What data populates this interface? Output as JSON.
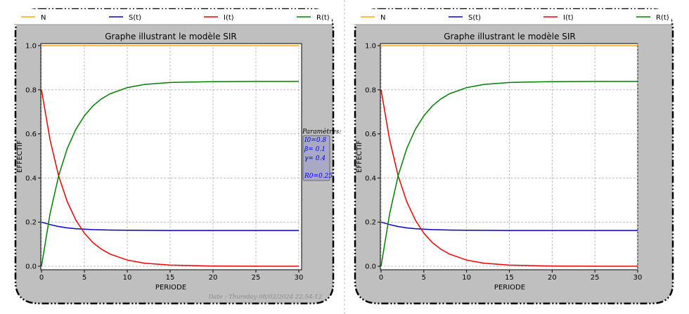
{
  "legend": [
    {
      "label": "N",
      "color": "#ffa500"
    },
    {
      "label": "S(t)",
      "color": "#0000cc"
    },
    {
      "label": "I(t)",
      "color": "#ee0000"
    },
    {
      "label": "R(t)",
      "color": "#008000"
    }
  ],
  "params": {
    "heading": "Paramètres:",
    "lines": [
      "I0=0.8",
      "β= 0.1",
      "γ= 0.4",
      "",
      "R0=0.25"
    ]
  },
  "date_text": "Date : Thursday 08/02/2024 22:54:12",
  "chart_data": [
    {
      "type": "line",
      "title": "Graphe illustrant le modèle SIR",
      "xlabel": "PERIODE",
      "ylabel": "EFFECTIF",
      "xlim": [
        0,
        30
      ],
      "ylim": [
        0,
        1.0
      ],
      "xticks": [
        0,
        5,
        10,
        15,
        20,
        25,
        30
      ],
      "yticks": [
        0.0,
        0.2,
        0.4,
        0.6,
        0.8,
        1.0
      ],
      "grid": true,
      "legend_position": "top",
      "series": [
        {
          "name": "N",
          "color": "#ffa500",
          "x": [
            0,
            30
          ],
          "y": [
            1.0,
            1.0
          ]
        },
        {
          "name": "S(t)",
          "color": "#0000cc",
          "x": [
            0,
            1,
            2,
            3,
            4,
            5,
            6,
            8,
            10,
            15,
            20,
            25,
            30
          ],
          "y": [
            0.2,
            0.189,
            0.18,
            0.174,
            0.17,
            0.168,
            0.166,
            0.164,
            0.163,
            0.162,
            0.162,
            0.162,
            0.162
          ]
        },
        {
          "name": "I(t)",
          "color": "#ee0000",
          "x": [
            0,
            1,
            2,
            3,
            4,
            5,
            6,
            7,
            8,
            10,
            12,
            15,
            20,
            25,
            30
          ],
          "y": [
            0.8,
            0.573,
            0.41,
            0.293,
            0.21,
            0.15,
            0.107,
            0.077,
            0.055,
            0.028,
            0.014,
            0.005,
            0.001,
            0.0,
            0.0
          ]
        },
        {
          "name": "R(t)",
          "color": "#008000",
          "x": [
            0,
            1,
            2,
            3,
            4,
            5,
            6,
            7,
            8,
            10,
            12,
            15,
            20,
            25,
            30
          ],
          "y": [
            0.0,
            0.238,
            0.41,
            0.533,
            0.62,
            0.682,
            0.727,
            0.759,
            0.782,
            0.81,
            0.824,
            0.833,
            0.837,
            0.838,
            0.838
          ]
        }
      ]
    },
    {
      "type": "line",
      "title": "Graphe illustrant le modèle SIR",
      "xlabel": "PERIODE",
      "ylabel": "EFFECTIF",
      "xlim": [
        0,
        30
      ],
      "ylim": [
        0,
        1.0
      ],
      "xticks": [
        0,
        5,
        10,
        15,
        20,
        25,
        30
      ],
      "yticks": [
        0.0,
        0.2,
        0.4,
        0.6,
        0.8,
        1.0
      ],
      "grid": true,
      "legend_position": "top",
      "series": [
        {
          "name": "N",
          "color": "#ffa500",
          "x": [
            0,
            30
          ],
          "y": [
            1.0,
            1.0
          ]
        },
        {
          "name": "S(t)",
          "color": "#0000cc",
          "x": [
            0,
            1,
            2,
            3,
            4,
            5,
            6,
            8,
            10,
            15,
            20,
            25,
            30
          ],
          "y": [
            0.2,
            0.189,
            0.18,
            0.174,
            0.17,
            0.168,
            0.166,
            0.164,
            0.163,
            0.162,
            0.162,
            0.162,
            0.162
          ]
        },
        {
          "name": "I(t)",
          "color": "#ee0000",
          "x": [
            0,
            1,
            2,
            3,
            4,
            5,
            6,
            7,
            8,
            10,
            12,
            15,
            20,
            25,
            30
          ],
          "y": [
            0.8,
            0.573,
            0.41,
            0.293,
            0.21,
            0.15,
            0.107,
            0.077,
            0.055,
            0.028,
            0.014,
            0.005,
            0.001,
            0.0,
            0.0
          ]
        },
        {
          "name": "R(t)",
          "color": "#008000",
          "x": [
            0,
            1,
            2,
            3,
            4,
            5,
            6,
            7,
            8,
            10,
            12,
            15,
            20,
            25,
            30
          ],
          "y": [
            0.0,
            0.238,
            0.41,
            0.533,
            0.62,
            0.682,
            0.727,
            0.759,
            0.782,
            0.81,
            0.824,
            0.833,
            0.837,
            0.838,
            0.838
          ]
        }
      ]
    }
  ]
}
